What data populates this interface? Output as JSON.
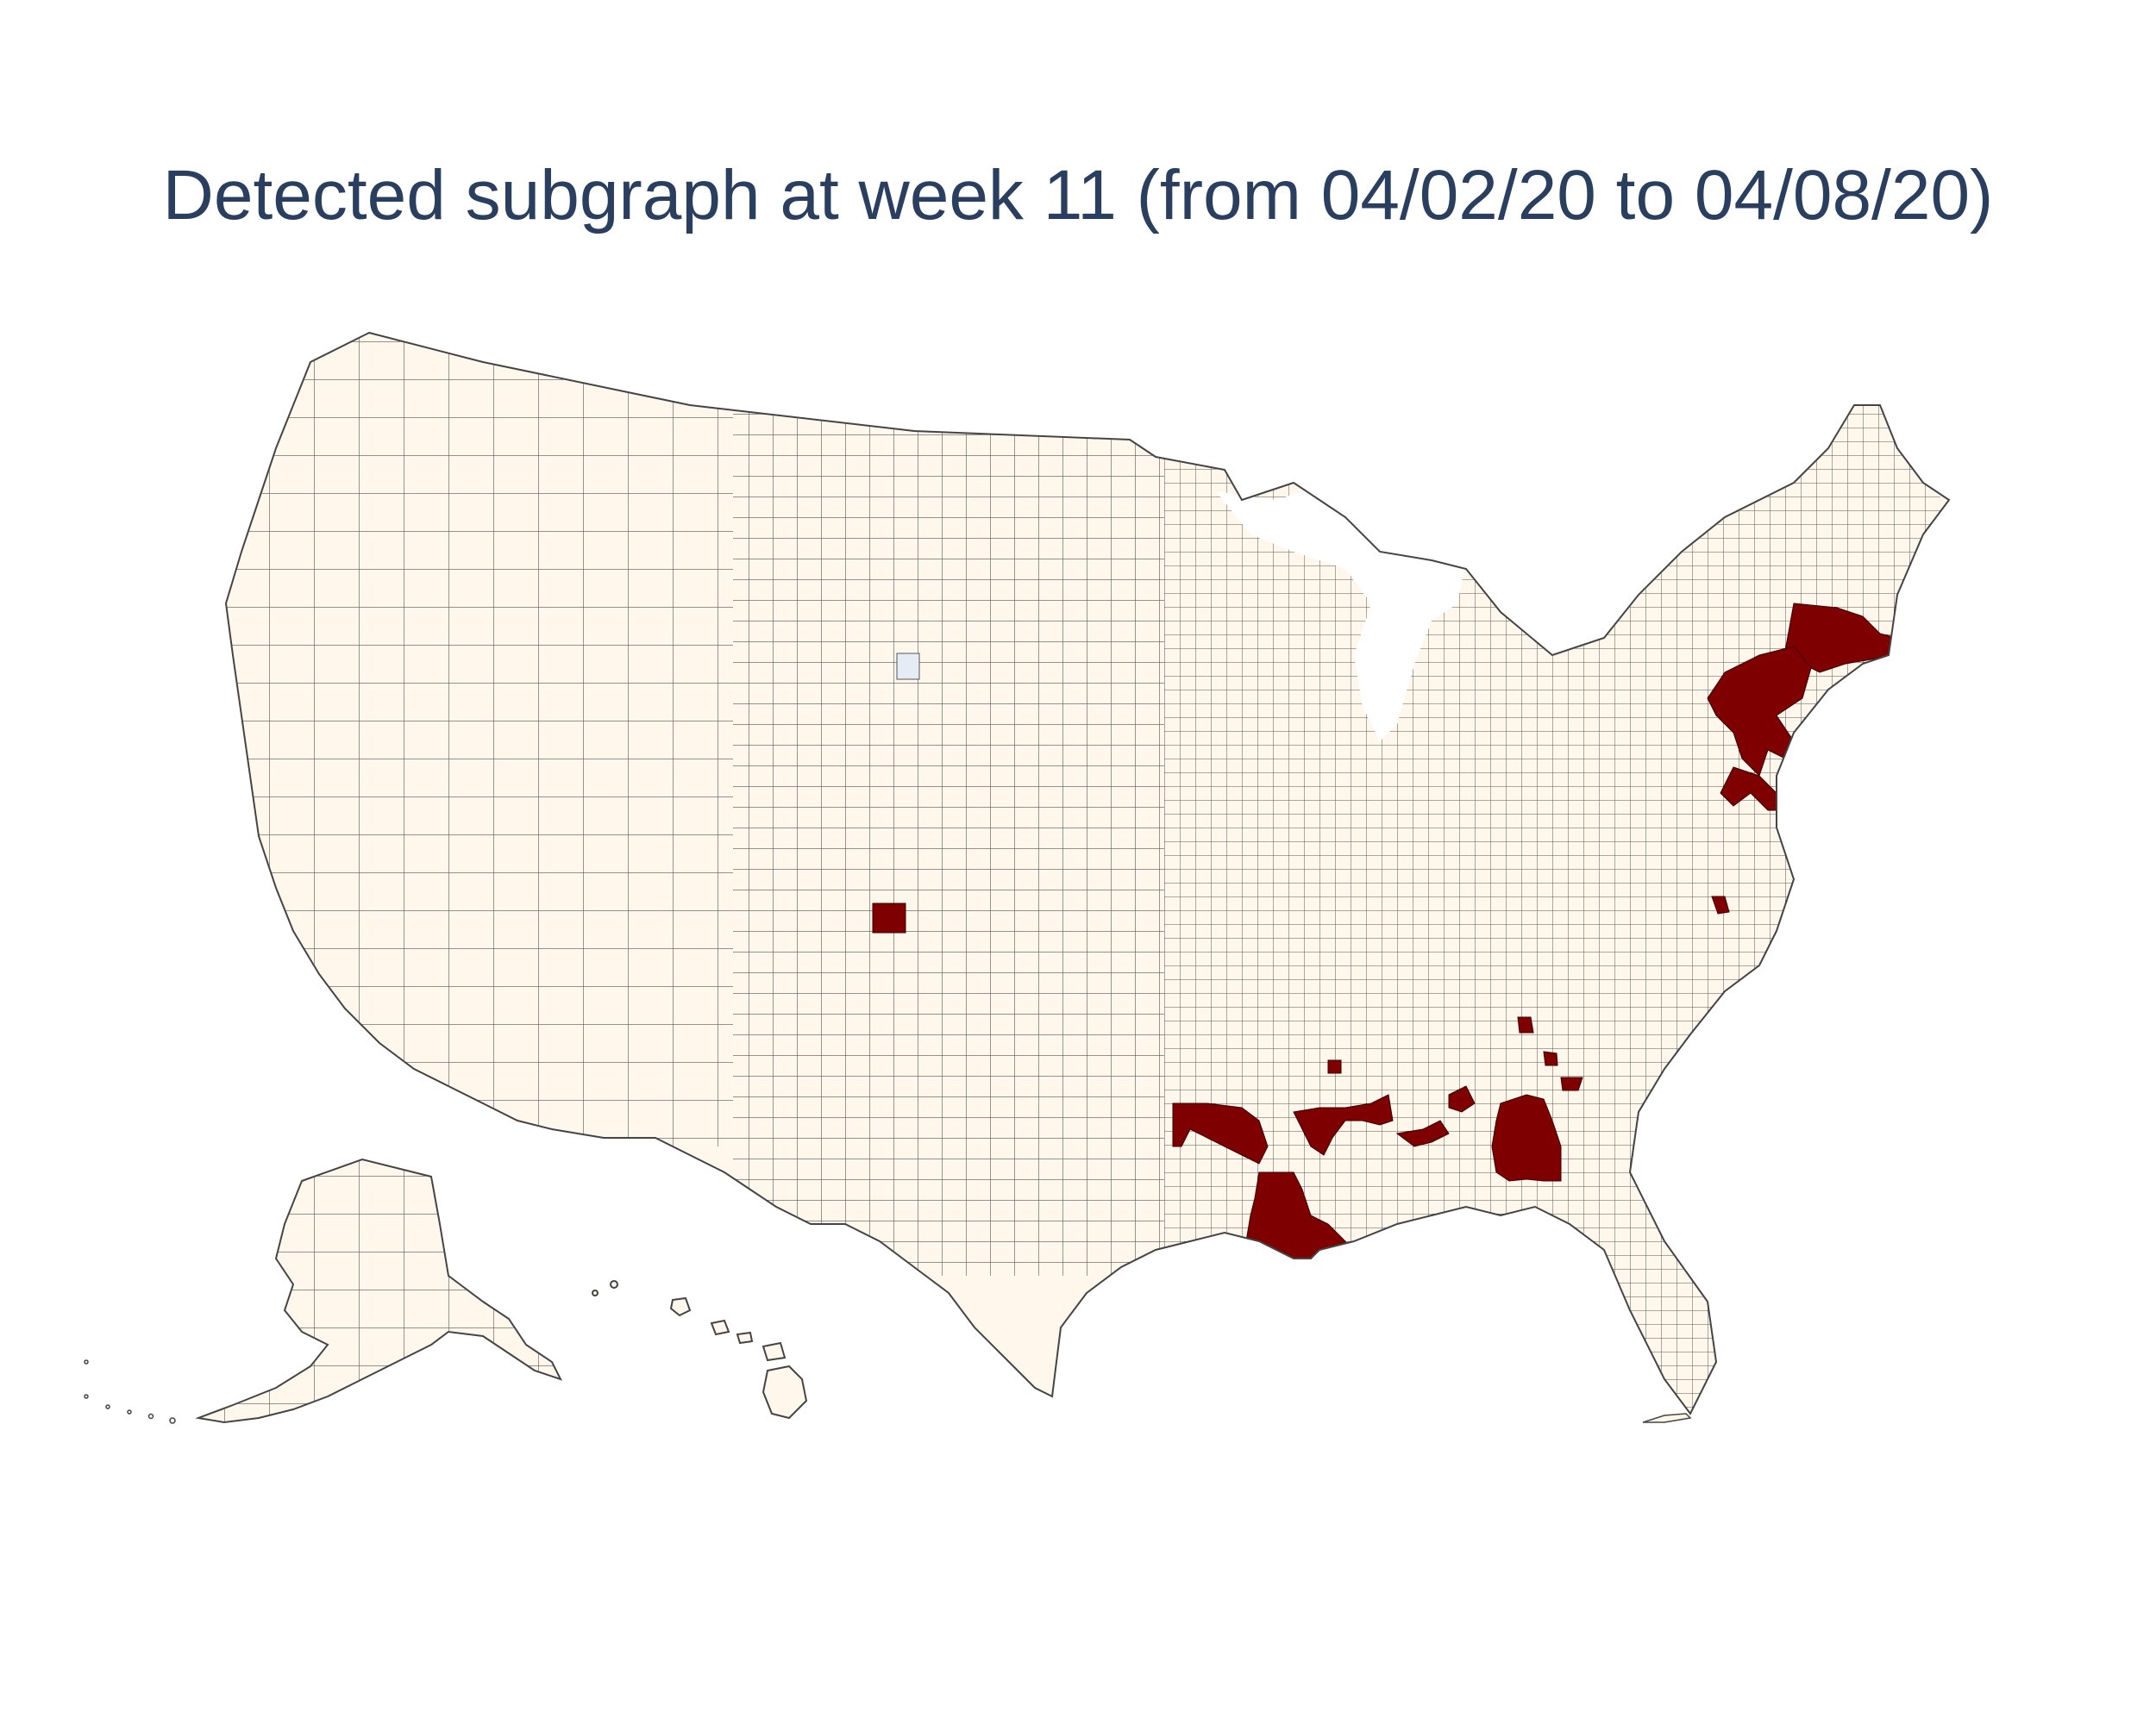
{
  "title": "Detected subgraph at week 11 (from 04/02/20 to 04/08/20)",
  "colors": {
    "background": "#ffffff",
    "county_fill": "#fff7ec",
    "county_border": "#444444",
    "detected_fill": "#7f0000",
    "missing_fill": "#e6ecf5",
    "title_color": "#2a3f5f"
  },
  "map": {
    "projection": "albers-usa",
    "units": "counties",
    "highlighted_regions": [
      "new-england",
      "new-york-new-jersey",
      "delaware-maryland",
      "virginia-point",
      "colorado-county",
      "louisiana",
      "mississippi",
      "alabama",
      "georgia"
    ]
  }
}
